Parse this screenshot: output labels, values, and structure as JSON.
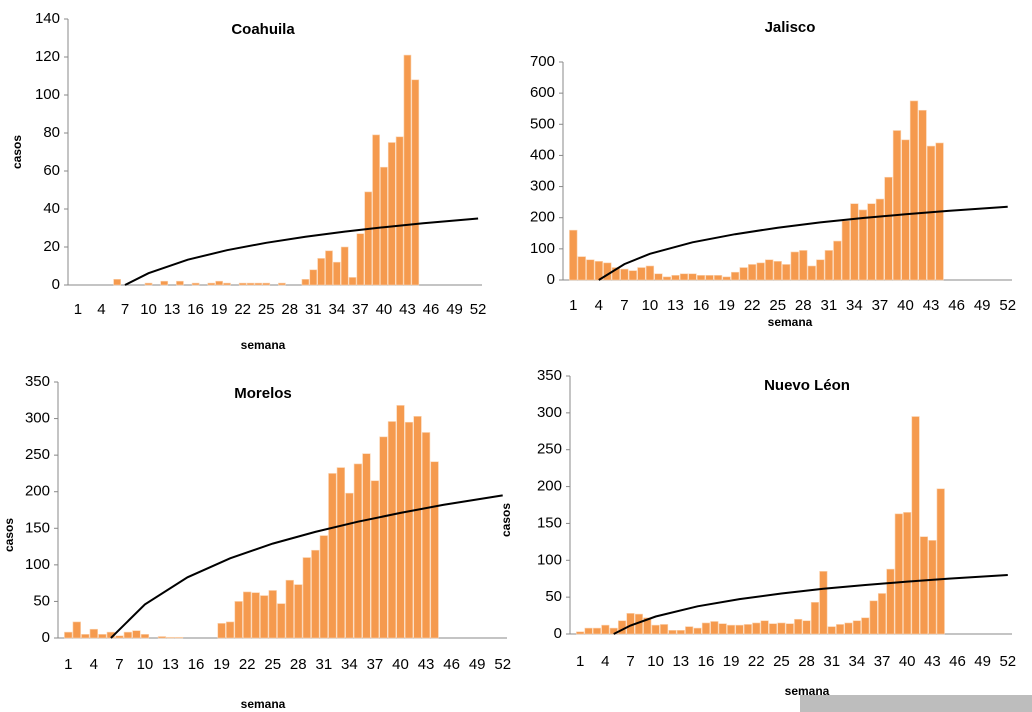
{
  "chart_data": [
    {
      "type": "bar",
      "title": "Coahuila",
      "x_label": "semana",
      "y_label": "casos",
      "color": "#f59a4e",
      "categories": [
        1,
        null,
        null,
        4,
        null,
        null,
        7,
        null,
        null,
        10,
        null,
        null,
        13,
        null,
        null,
        16,
        null,
        null,
        19,
        null,
        null,
        22,
        null,
        null,
        25,
        null,
        null,
        28,
        null,
        null,
        31,
        null,
        null,
        34,
        null,
        null,
        37,
        null,
        null,
        40,
        null,
        null,
        43,
        null,
        null,
        46,
        null,
        null,
        49,
        null,
        null,
        52
      ],
      "values": [
        0,
        0,
        0,
        0,
        0,
        3,
        0,
        0,
        0,
        1,
        0,
        2,
        0,
        2,
        0,
        1,
        0,
        1,
        2,
        1,
        0,
        1,
        1,
        1,
        1,
        0,
        1,
        0,
        0,
        3,
        8,
        14,
        18,
        12,
        20,
        4,
        27,
        49,
        79,
        62,
        75,
        78,
        121,
        108,
        null,
        null,
        null,
        null,
        null,
        null,
        null,
        null
      ],
      "trend": {
        "color": "#000000",
        "x": [
          7,
          10,
          15,
          20,
          25,
          30,
          35,
          40,
          45,
          52
        ],
        "values": [
          0,
          6.2,
          13.3,
          18.3,
          22.2,
          25.4,
          28.1,
          30.4,
          32.5,
          35
        ]
      },
      "ylim": [
        0,
        140
      ],
      "yticks": [
        0,
        20,
        40,
        60,
        80,
        100,
        120,
        140
      ]
    },
    {
      "type": "bar",
      "title": "Jalisco",
      "x_label": "semana",
      "color": "#f59a4e",
      "categories": [
        1,
        null,
        null,
        4,
        null,
        null,
        7,
        null,
        null,
        10,
        null,
        null,
        13,
        null,
        null,
        16,
        null,
        null,
        19,
        null,
        null,
        22,
        null,
        null,
        25,
        null,
        null,
        28,
        null,
        null,
        31,
        null,
        null,
        34,
        null,
        null,
        37,
        null,
        null,
        40,
        null,
        null,
        43,
        null,
        null,
        46,
        null,
        null,
        49,
        null,
        null,
        52
      ],
      "values": [
        160,
        75,
        65,
        60,
        55,
        40,
        35,
        30,
        40,
        45,
        20,
        10,
        15,
        20,
        20,
        15,
        15,
        15,
        10,
        25,
        40,
        50,
        55,
        65,
        60,
        50,
        90,
        95,
        45,
        65,
        95,
        125,
        190,
        245,
        225,
        245,
        260,
        330,
        480,
        450,
        575,
        545,
        430,
        440,
        null,
        null,
        null,
        null,
        null,
        null,
        null,
        null
      ],
      "trend": {
        "color": "#000000",
        "x": [
          4,
          7,
          10,
          15,
          20,
          25,
          30,
          35,
          40,
          45,
          52
        ],
        "values": [
          0,
          51,
          84,
          121,
          147,
          168,
          185,
          199,
          211,
          222,
          235
        ]
      },
      "ylim": [
        0,
        700
      ],
      "yticks": [
        0,
        100,
        200,
        300,
        400,
        500,
        600,
        700
      ]
    },
    {
      "type": "bar",
      "title": "Morelos",
      "x_label": "semana",
      "y_label": "casos",
      "color": "#f59a4e",
      "categories": [
        1,
        null,
        null,
        4,
        null,
        null,
        7,
        null,
        null,
        10,
        null,
        null,
        13,
        null,
        null,
        16,
        null,
        null,
        19,
        null,
        null,
        22,
        null,
        null,
        25,
        null,
        null,
        28,
        null,
        null,
        31,
        null,
        null,
        34,
        null,
        null,
        37,
        null,
        null,
        40,
        null,
        null,
        43,
        null,
        null,
        46,
        null,
        null,
        49,
        null,
        null,
        52
      ],
      "values": [
        8,
        22,
        5,
        12,
        5,
        8,
        3,
        8,
        10,
        5,
        0,
        2,
        1,
        1,
        0,
        0,
        0,
        0,
        20,
        22,
        50,
        63,
        62,
        58,
        65,
        47,
        79,
        73,
        110,
        120,
        140,
        225,
        233,
        198,
        238,
        252,
        215,
        275,
        296,
        318,
        295,
        303,
        281,
        241,
        null,
        null,
        null,
        null,
        null,
        null,
        null,
        null
      ],
      "trend": {
        "color": "#000000",
        "x": [
          6,
          10,
          15,
          20,
          25,
          30,
          35,
          40,
          45,
          52
        ],
        "values": [
          0,
          46,
          83,
          109,
          129,
          145,
          159,
          171,
          182,
          195
        ]
      },
      "ylim": [
        0,
        350
      ],
      "yticks": [
        0,
        50,
        100,
        150,
        200,
        250,
        300,
        350
      ]
    },
    {
      "type": "bar",
      "title": "Nuevo Léon",
      "x_label": "semana",
      "y_label": "casos",
      "color": "#f59a4e",
      "categories": [
        1,
        null,
        null,
        4,
        null,
        null,
        7,
        null,
        null,
        10,
        null,
        null,
        13,
        null,
        null,
        16,
        null,
        null,
        19,
        null,
        null,
        22,
        null,
        null,
        25,
        null,
        null,
        28,
        null,
        null,
        31,
        null,
        null,
        34,
        null,
        null,
        37,
        null,
        null,
        40,
        null,
        null,
        43,
        null,
        null,
        46,
        null,
        null,
        49,
        null,
        null,
        52
      ],
      "values": [
        3,
        8,
        8,
        12,
        8,
        18,
        28,
        27,
        22,
        12,
        13,
        5,
        5,
        10,
        8,
        15,
        17,
        14,
        12,
        12,
        13,
        15,
        18,
        14,
        15,
        14,
        20,
        18,
        43,
        85,
        10,
        13,
        15,
        18,
        22,
        45,
        55,
        88,
        163,
        165,
        295,
        132,
        127,
        197,
        null,
        null,
        null,
        null,
        null,
        null,
        null,
        null
      ],
      "trend": {
        "color": "#000000",
        "x": [
          5,
          7,
          10,
          15,
          20,
          25,
          30,
          35,
          40,
          45,
          52
        ],
        "values": [
          0,
          11.5,
          23.7,
          37.6,
          47.4,
          55,
          61.3,
          66.5,
          71.1,
          75.1,
          80
        ]
      },
      "ylim": [
        0,
        350
      ],
      "yticks": [
        0,
        50,
        100,
        150,
        200,
        250,
        300,
        350
      ]
    }
  ]
}
